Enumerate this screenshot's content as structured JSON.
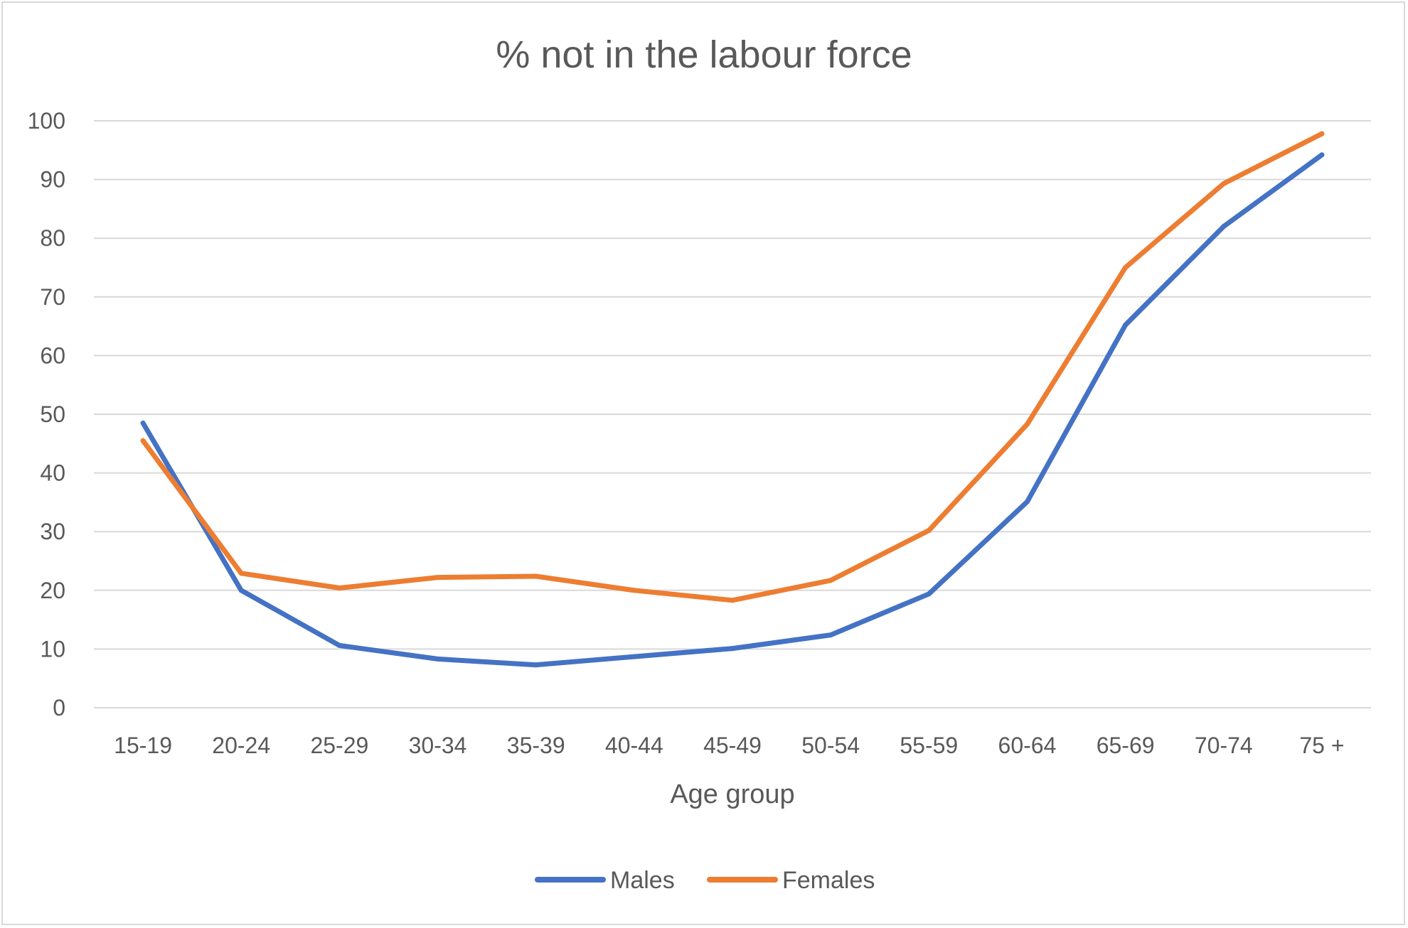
{
  "chart_data": {
    "type": "line",
    "title": "% not in the labour force",
    "xlabel": "Age group",
    "ylabel": "",
    "categories": [
      "15-19",
      "20-24",
      "25-29",
      "30-34",
      "35-39",
      "40-44",
      "45-49",
      "50-54",
      "55-59",
      "60-64",
      "65-69",
      "70-74",
      "75 +"
    ],
    "ylim": [
      0,
      100
    ],
    "yticks": [
      0,
      10,
      20,
      30,
      40,
      50,
      60,
      70,
      80,
      90,
      100
    ],
    "grid": true,
    "legend_position": "bottom",
    "series": [
      {
        "name": "Males",
        "color": "#4472c4",
        "values": [
          48.5,
          20.0,
          10.6,
          8.3,
          7.3,
          8.7,
          10.1,
          12.4,
          19.4,
          35.1,
          65.2,
          82.0,
          94.2
        ]
      },
      {
        "name": "Females",
        "color": "#ed7d31",
        "values": [
          45.5,
          22.9,
          20.4,
          22.2,
          22.4,
          20.0,
          18.3,
          21.7,
          30.2,
          48.3,
          75.0,
          89.3,
          97.8
        ]
      }
    ]
  }
}
